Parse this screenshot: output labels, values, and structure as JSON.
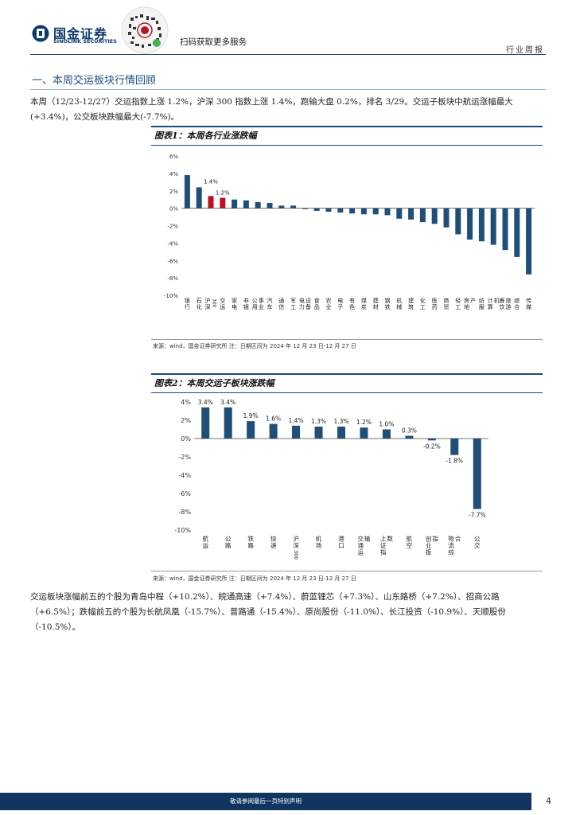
{
  "header": {
    "logo_cn": "国金证券",
    "logo_en": "SINOLINK SECURITIES",
    "scan_text": "扫码获取更多服务",
    "report_type": "行业周报"
  },
  "section": {
    "heading": "一、本周交运板块行情回顾",
    "intro": "本周（12/23-12/27）交运指数上涨 1.2%，沪深 300 指数上涨 1.4%，跑输大盘 0.2%，排名 3/29。交运子板块中航运涨幅最大(+3.4%)，公交板块跌幅最大(-7.7%)。",
    "stocks": "交运板块涨幅前五的个股为青岛中程（+10.2%）、皖通高速（+7.4%）、蔚蓝锂芯（+7.3%）、山东路桥（+7.2%）、招商公路（+6.5%）；跌幅前五的个股为长航凤凰（-15.7%）、普路通（-15.4%）、原尚股份（-11.0%）、长江投资（-10.9%）、天顺股份（-10.5%）。"
  },
  "figures": [
    {
      "title": "图表1：本周各行业涨跌幅",
      "source": "来源：wind，国金证券研究所   注：日期区间为 2024 年 12 月 23 日-12 月 27 日"
    },
    {
      "title": "图表2：本周交运子板块涨跌幅",
      "source": "来源：wind，国金证券研究所   注：日期区间为 2024 年 12 月 23 日-12 月 27 日"
    }
  ],
  "chart_data": [
    {
      "type": "bar",
      "title": "图表1：本周各行业涨跌幅",
      "categories": [
        "银行",
        "石化",
        "沪深300",
        "交运",
        "家电",
        "非银",
        "公用事业",
        "汽车",
        "通信",
        "军工",
        "电力设备",
        "食品",
        "农业",
        "电子",
        "有色",
        "煤炭",
        "建材",
        "钢铁",
        "机械",
        "建筑",
        "化工",
        "医药",
        "商贸",
        "轻工",
        "房地产",
        "纺服",
        "计算机",
        "餐饮旅游",
        "综合",
        "传媒"
      ],
      "values": [
        3.8,
        2.4,
        1.4,
        1.2,
        1.0,
        0.9,
        0.7,
        0.6,
        0.3,
        0.3,
        -0.1,
        -0.3,
        -0.4,
        -0.5,
        -0.6,
        -0.7,
        -0.7,
        -0.8,
        -1.2,
        -1.3,
        -1.6,
        -1.8,
        -2.2,
        -3.0,
        -3.6,
        -3.8,
        -4.2,
        -4.8,
        -5.6,
        -7.6
      ],
      "data_labels": [
        {
          "category": "沪深300",
          "text": "1.4%"
        },
        {
          "category": "交运",
          "text": "1.2%"
        }
      ],
      "highlight": [
        "沪深300",
        "交运"
      ],
      "highlight_color": "#c0121e",
      "bar_color": "#1f4e79",
      "yticks": [
        "6%",
        "4%",
        "2%",
        "0%",
        "-2%",
        "-4%",
        "-6%",
        "-8%",
        "-10%"
      ],
      "ylim": [
        -10,
        6
      ]
    },
    {
      "type": "bar",
      "title": "图表2：本周交运子板块涨跌幅",
      "categories": [
        "航运",
        "公路",
        "铁路",
        "快递",
        "沪深300",
        "机场",
        "港口",
        "交通运输",
        "上证指数",
        "航空",
        "创业板指",
        "物流综合",
        "公交"
      ],
      "values": [
        3.4,
        3.4,
        1.9,
        1.6,
        1.4,
        1.3,
        1.3,
        1.2,
        1.0,
        0.3,
        -0.2,
        -1.8,
        -7.7
      ],
      "labels": [
        "3.4%",
        "3.4%",
        "1.9%",
        "1.6%",
        "1.4%",
        "1.3%",
        "1.3%",
        "1.2%",
        "1.0%",
        "0.3%",
        "-0.2%",
        "-1.8%",
        "-7.7%"
      ],
      "bar_color": "#1f4e79",
      "yticks": [
        "4%",
        "2%",
        "0%",
        "-2%",
        "-4%",
        "-6%",
        "-8%",
        "-10%"
      ],
      "ylim": [
        -10,
        4
      ]
    }
  ],
  "footer": {
    "disclaimer": "敬请参阅最后一页特别声明",
    "page": "4"
  }
}
